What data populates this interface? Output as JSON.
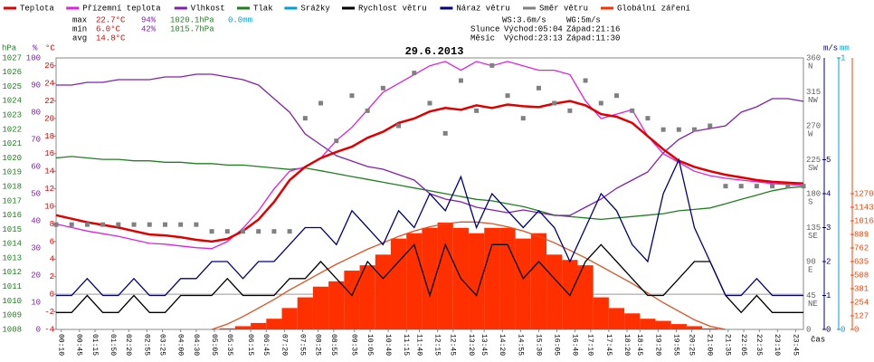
{
  "chart_data": {
    "type": "line",
    "title": "29.6.2013",
    "x_label": "čas",
    "stats": {
      "rows": [
        {
          "label": "max",
          "temperature": "22.7°C",
          "humidity": "94%",
          "pressure": "1020.1hPa",
          "rain": "0.0mm"
        },
        {
          "label": "min",
          "temperature": "6.0°C",
          "humidity": "42%",
          "pressure": "1015.7hPa"
        },
        {
          "label": "avg",
          "temperature": "14.8°C"
        }
      ],
      "wind": [
        "WS:3.6m/s",
        "WG:5m/s"
      ],
      "sun": {
        "label": "Slunce",
        "rise": "Východ:05:04",
        "set": "Západ:21:16"
      },
      "moon": {
        "label": "Měsíc",
        "rise": "Východ:23:13",
        "set": "Západ:11:30"
      }
    },
    "xlim": [
      0,
      24
    ],
    "xticks": [
      {
        "value": 0.1667,
        "label": "00:10"
      },
      {
        "value": 0.75,
        "label": "00:45"
      },
      {
        "value": 1.25,
        "label": "01:15"
      },
      {
        "value": 1.8333,
        "label": "01:50"
      },
      {
        "value": 2.3333,
        "label": "02:20"
      },
      {
        "value": 2.9167,
        "label": "02:55"
      },
      {
        "value": 3.4167,
        "label": "03:25"
      },
      {
        "value": 4,
        "label": "04:00"
      },
      {
        "value": 4.5,
        "label": "04:30"
      },
      {
        "value": 5.0833,
        "label": "05:05"
      },
      {
        "value": 5.5833,
        "label": "05:35"
      },
      {
        "value": 6.25,
        "label": "06:15"
      },
      {
        "value": 6.75,
        "label": "06:45"
      },
      {
        "value": 7.3333,
        "label": "07:20"
      },
      {
        "value": 7.9167,
        "label": "07:55"
      },
      {
        "value": 8.4167,
        "label": "08:25"
      },
      {
        "value": 8.9167,
        "label": "08:55"
      },
      {
        "value": 9.5833,
        "label": "09:35"
      },
      {
        "value": 10.0833,
        "label": "10:05"
      },
      {
        "value": 10.6667,
        "label": "10:40"
      },
      {
        "value": 11.25,
        "label": "11:15"
      },
      {
        "value": 11.6667,
        "label": "11:40"
      },
      {
        "value": 12.25,
        "label": "12:15"
      },
      {
        "value": 12.75,
        "label": "12:45"
      },
      {
        "value": 13.3333,
        "label": "13:20"
      },
      {
        "value": 13.75,
        "label": "13:45"
      },
      {
        "value": 14.3333,
        "label": "14:20"
      },
      {
        "value": 14.9167,
        "label": "14:55"
      },
      {
        "value": 15.5,
        "label": "15:30"
      },
      {
        "value": 16.0833,
        "label": "16:05"
      },
      {
        "value": 16.6667,
        "label": "16:40"
      },
      {
        "value": 17.1667,
        "label": "17:10"
      },
      {
        "value": 17.75,
        "label": "17:45"
      },
      {
        "value": 18.3333,
        "label": "18:20"
      },
      {
        "value": 18.75,
        "label": "18:45"
      },
      {
        "value": 19.3333,
        "label": "19:20"
      },
      {
        "value": 19.9167,
        "label": "19:55"
      },
      {
        "value": 20.4167,
        "label": "20:25"
      },
      {
        "value": 21,
        "label": "21:00"
      },
      {
        "value": 21.5833,
        "label": "21:35"
      },
      {
        "value": 22.0833,
        "label": "22:05"
      },
      {
        "value": 22.5833,
        "label": "22:35"
      },
      {
        "value": 23.1667,
        "label": "23:10"
      },
      {
        "value": 23.75,
        "label": "23:45"
      }
    ],
    "axes": {
      "pressure": {
        "unit": "hPa",
        "side": "left",
        "color": "#208020",
        "lim": [
          1008,
          1027
        ],
        "ticks": [
          1008,
          1009,
          1010,
          1011,
          1012,
          1013,
          1014,
          1015,
          1016,
          1017,
          1018,
          1019,
          1020,
          1021,
          1022,
          1023,
          1024,
          1025,
          1026,
          1027
        ]
      },
      "humidity": {
        "unit": "%",
        "side": "left",
        "color": "#8020b0",
        "lim": [
          0,
          100
        ],
        "ticks": [
          0,
          10,
          20,
          30,
          40,
          50,
          60,
          70,
          80,
          90,
          100
        ]
      },
      "temperature": {
        "unit": "°C",
        "side": "left",
        "color": "#e00000",
        "lim": [
          -4,
          26.9
        ],
        "ticks": [
          -4,
          -2,
          0,
          2,
          4,
          6,
          8,
          10,
          12,
          14,
          16,
          18,
          20,
          22,
          24,
          26
        ]
      },
      "direction": {
        "side": "right",
        "color": "#606060",
        "lim": [
          0,
          360
        ],
        "ticks": [
          0,
          45,
          90,
          135,
          180,
          225,
          270,
          315,
          360
        ],
        "compass": [
          null,
          "NE",
          "E",
          "SE",
          "S",
          "SW",
          "W",
          "NW",
          "N"
        ]
      },
      "wind": {
        "unit": "m/s",
        "side": "right",
        "color": "#000080",
        "lim": [
          0,
          8
        ],
        "ticks": [
          0,
          1,
          2,
          3,
          4,
          5
        ]
      },
      "rain": {
        "unit": "mm",
        "side": "right",
        "color": "#00a0d0",
        "lim": [
          0,
          1
        ],
        "ticks": [
          0,
          1
        ]
      },
      "radiation": {
        "side": "right",
        "color": "#ff4000",
        "lim": [
          0,
          2540
        ],
        "ticks": [
          0,
          127,
          254,
          381,
          508,
          635,
          762,
          889,
          1016,
          1143,
          1270
        ]
      }
    },
    "x": [
      0,
      0.5,
      1,
      1.5,
      2,
      2.5,
      3,
      3.5,
      4,
      4.5,
      5,
      5.5,
      6,
      6.5,
      7,
      7.5,
      8,
      8.5,
      9,
      9.5,
      10,
      10.5,
      11,
      11.5,
      12,
      12.5,
      13,
      13.5,
      14,
      14.5,
      15,
      15.5,
      16,
      16.5,
      17,
      17.5,
      18,
      18.5,
      19,
      19.5,
      20,
      20.5,
      21,
      21.5,
      22,
      22.5,
      23,
      23.5,
      24
    ],
    "series": [
      {
        "name": "Teplota",
        "color": "#e00000",
        "axis": "temperature",
        "style": "line",
        "values": [
          9.0,
          8.6,
          8.2,
          7.9,
          7.6,
          7.2,
          6.8,
          6.7,
          6.5,
          6.2,
          6.0,
          6.3,
          7.2,
          8.5,
          10.5,
          13.0,
          14.5,
          15.5,
          16.2,
          16.8,
          17.8,
          18.5,
          19.5,
          20.0,
          20.8,
          21.2,
          21.0,
          21.5,
          21.2,
          21.6,
          21.4,
          21.3,
          21.7,
          22.0,
          21.5,
          20.5,
          20.2,
          19.5,
          18.0,
          16.5,
          15.2,
          14.5,
          14.0,
          13.6,
          13.3,
          13.0,
          12.8,
          12.7,
          12.6
        ]
      },
      {
        "name": "Přízemní teplota",
        "color": "#e020e0",
        "axis": "temperature",
        "style": "line",
        "values": [
          8.0,
          7.6,
          7.2,
          6.9,
          6.6,
          6.2,
          5.8,
          5.7,
          5.5,
          5.3,
          5.2,
          6.0,
          7.5,
          9.5,
          12.0,
          14.0,
          14.5,
          15.5,
          17.5,
          19.0,
          21.0,
          23.0,
          24.0,
          25.0,
          26.0,
          26.5,
          25.5,
          26.5,
          26.0,
          26.5,
          26.0,
          25.5,
          25.5,
          25.0,
          22.0,
          20.0,
          20.5,
          21.0,
          18.0,
          16.0,
          15.0,
          14.0,
          13.5,
          13.2,
          13.0,
          12.8,
          12.6,
          12.5,
          12.4
        ]
      },
      {
        "name": "Vlhkost",
        "color": "#8020b0",
        "axis": "humidity",
        "style": "line",
        "values": [
          90,
          90,
          91,
          91,
          92,
          92,
          92,
          93,
          93,
          94,
          94,
          93,
          92,
          90,
          85,
          80,
          72,
          68,
          64,
          62,
          60,
          59,
          57,
          55,
          50,
          48,
          47,
          45,
          44,
          43,
          44,
          43,
          42,
          42,
          45,
          48,
          52,
          55,
          58,
          65,
          70,
          73,
          74,
          75,
          80,
          82,
          85,
          85,
          84
        ]
      },
      {
        "name": "Tlak",
        "color": "#208020",
        "axis": "pressure",
        "style": "line",
        "values": [
          1020.0,
          1020.1,
          1020.0,
          1019.9,
          1019.9,
          1019.8,
          1019.8,
          1019.7,
          1019.7,
          1019.6,
          1019.6,
          1019.5,
          1019.5,
          1019.4,
          1019.3,
          1019.2,
          1019.3,
          1019.1,
          1018.9,
          1018.7,
          1018.5,
          1018.3,
          1018.1,
          1017.9,
          1017.7,
          1017.5,
          1017.3,
          1017.1,
          1017.0,
          1016.8,
          1016.6,
          1016.3,
          1016.0,
          1015.9,
          1015.8,
          1015.7,
          1015.8,
          1015.9,
          1016.0,
          1016.1,
          1016.3,
          1016.4,
          1016.5,
          1016.8,
          1017.1,
          1017.4,
          1017.7,
          1017.9,
          1018.0
        ]
      },
      {
        "name": "Srážky",
        "color": "#00a0d0",
        "axis": "rain",
        "style": "none"
      },
      {
        "name": "Rychlost větru",
        "color": "#000000",
        "axis": "wind",
        "style": "line",
        "values": [
          0.5,
          0.5,
          1,
          0.5,
          0.5,
          1,
          0.5,
          0.5,
          1,
          1,
          1,
          1.5,
          1,
          1,
          1,
          1.5,
          1.5,
          2,
          1.5,
          1,
          2,
          1.5,
          2,
          2.5,
          1,
          2.5,
          1.5,
          1,
          2.5,
          2.5,
          1.5,
          2,
          1.5,
          1,
          2,
          2.5,
          2,
          1.5,
          1,
          1,
          1.5,
          2,
          2,
          1,
          0.5,
          1,
          0.5,
          0.5,
          0.5
        ]
      },
      {
        "name": "Náraz větru",
        "color": "#000080",
        "axis": "wind",
        "style": "line",
        "values": [
          1,
          1,
          1.5,
          1,
          1,
          1.5,
          1,
          1,
          1.5,
          1.5,
          2,
          2,
          1.5,
          2,
          2,
          2.5,
          3,
          3,
          2.5,
          3.5,
          3,
          2.5,
          3.5,
          3,
          4,
          3.5,
          4.5,
          3,
          4,
          3.5,
          3,
          3.5,
          3,
          2,
          3,
          4,
          3.5,
          2.5,
          2,
          4,
          5,
          3,
          2,
          1,
          1,
          1.5,
          1,
          1,
          1
        ]
      },
      {
        "name": "Směr větru",
        "color": "#808080",
        "axis": "direction",
        "style": "scatter",
        "values": [
          139,
          139,
          139,
          139,
          139,
          139,
          139,
          139,
          139,
          139,
          130,
          130,
          130,
          130,
          130,
          130,
          280,
          300,
          250,
          310,
          290,
          320,
          270,
          340,
          300,
          260,
          330,
          290,
          350,
          310,
          280,
          320,
          300,
          290,
          330,
          300,
          310,
          290,
          280,
          265,
          265,
          265,
          270,
          190,
          190,
          190,
          190,
          190,
          190
        ]
      },
      {
        "name": "Globální záření",
        "color": "#ff3000",
        "axis": "radiation",
        "style": "bars",
        "values": [
          0,
          0,
          0,
          0,
          0,
          0,
          0,
          0,
          0,
          0,
          0,
          10,
          30,
          60,
          100,
          200,
          300,
          400,
          450,
          550,
          600,
          700,
          850,
          900,
          950,
          1000,
          950,
          900,
          950,
          950,
          850,
          900,
          700,
          650,
          600,
          300,
          200,
          150,
          100,
          80,
          50,
          30,
          10,
          0,
          0,
          0,
          0,
          0,
          0
        ]
      },
      {
        "color": "#e05020",
        "axis": "radiation",
        "style": "line",
        "values": [
          null,
          null,
          null,
          null,
          null,
          null,
          null,
          null,
          null,
          null,
          0,
          50,
          120,
          200,
          280,
          370,
          450,
          530,
          610,
          680,
          750,
          810,
          870,
          920,
          960,
          990,
          1005,
          1005,
          990,
          960,
          920,
          870,
          810,
          740,
          670,
          590,
          510,
          430,
          340,
          250,
          170,
          90,
          30,
          0,
          null,
          null,
          null,
          null,
          null
        ]
      }
    ]
  }
}
